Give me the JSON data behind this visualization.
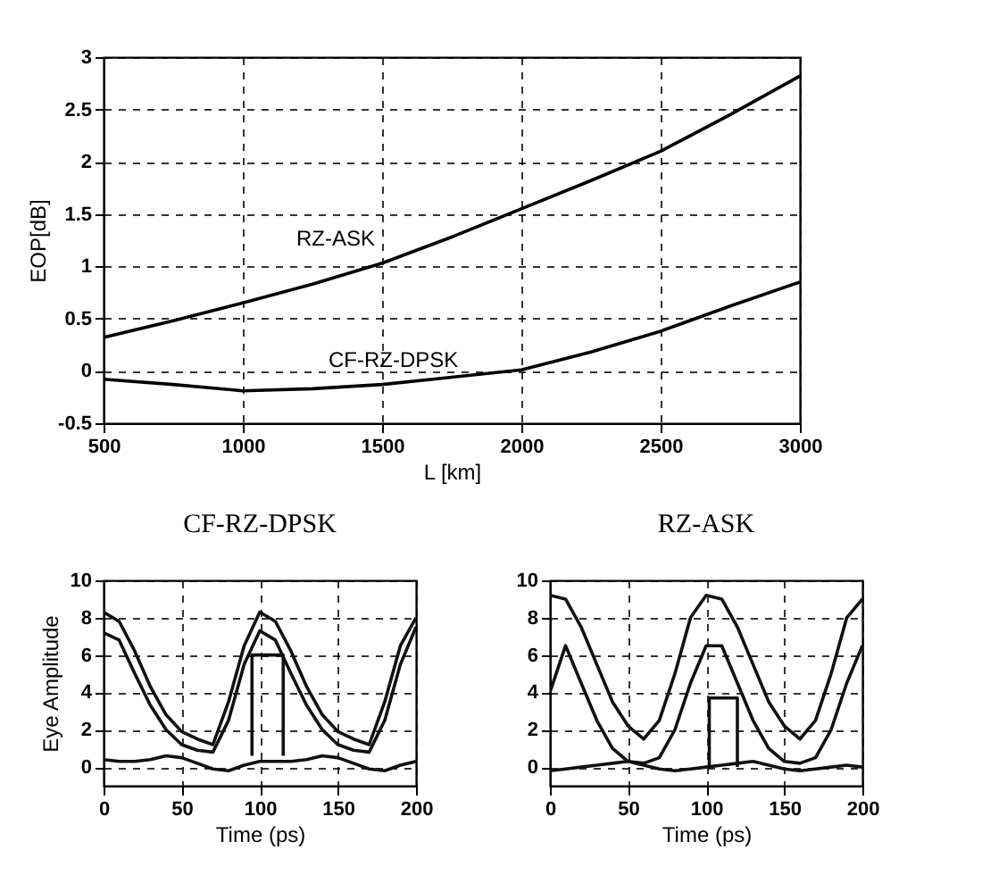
{
  "chart_data": [
    {
      "type": "line",
      "xlabel": "L [km]",
      "ylabel": "EOP[dB]",
      "x": [
        500,
        750,
        1000,
        1250,
        1500,
        1750,
        2000,
        2250,
        2500,
        2750,
        3000
      ],
      "xlim": [
        500,
        3000
      ],
      "xticks": [
        500,
        1000,
        1500,
        2000,
        2500,
        3000
      ],
      "ylim": [
        -0.5,
        3
      ],
      "yticks": [
        -0.5,
        0,
        0.5,
        1,
        1.5,
        2,
        2.5,
        3
      ],
      "grid": true,
      "series": [
        {
          "name": "RZ-ASK",
          "color": "#000000",
          "values": [
            0.32,
            0.48,
            0.65,
            0.83,
            1.03,
            1.28,
            1.55,
            1.82,
            2.1,
            2.45,
            2.82
          ]
        },
        {
          "name": "CF-RZ-DPSK",
          "color": "#000000",
          "values": [
            -0.08,
            -0.13,
            -0.19,
            -0.17,
            -0.13,
            -0.06,
            0.01,
            0.18,
            0.38,
            0.62,
            0.85
          ]
        }
      ]
    },
    {
      "type": "line",
      "title": "CF-RZ-DPSK",
      "xlabel": "Time (ps)",
      "ylabel": "Eye Amplitude",
      "x": [
        0,
        10,
        20,
        30,
        40,
        50,
        60,
        70,
        80,
        90,
        100,
        110,
        120,
        130,
        140,
        150,
        160,
        170,
        180,
        190,
        200
      ],
      "xlim": [
        0,
        200
      ],
      "xticks": [
        0,
        50,
        100,
        150,
        200
      ],
      "ylim": [
        -1,
        10
      ],
      "yticks": [
        0,
        2,
        4,
        6,
        8,
        10
      ],
      "grid": true,
      "series": [
        {
          "color": "#111111",
          "values": [
            8.3,
            7.8,
            6.2,
            4.3,
            2.8,
            1.9,
            1.5,
            1.2,
            3.5,
            6.5,
            8.3,
            7.8,
            6.2,
            4.3,
            2.8,
            1.9,
            1.5,
            1.2,
            3.5,
            6.5,
            8.0
          ]
        },
        {
          "color": "#111111",
          "values": [
            7.2,
            6.8,
            5.0,
            3.3,
            2.0,
            1.2,
            0.9,
            0.8,
            2.5,
            5.5,
            7.3,
            6.8,
            5.0,
            3.3,
            2.0,
            1.2,
            0.9,
            0.8,
            2.5,
            5.5,
            7.5
          ]
        },
        {
          "color": "#111111",
          "values": [
            0.4,
            0.3,
            0.3,
            0.4,
            0.6,
            0.5,
            0.2,
            -0.1,
            -0.2,
            0.1,
            0.3,
            0.3,
            0.3,
            0.4,
            0.6,
            0.5,
            0.2,
            -0.1,
            -0.2,
            0.1,
            0.3
          ]
        },
        {
          "color": "#111111",
          "x": [
            95,
            95,
            115,
            115
          ],
          "values": [
            0.6,
            6.0,
            6.0,
            0.6
          ]
        }
      ]
    },
    {
      "type": "line",
      "title": "RZ-ASK",
      "xlabel": "Time (ps)",
      "x": [
        0,
        10,
        20,
        30,
        40,
        50,
        60,
        70,
        80,
        90,
        100,
        110,
        120,
        130,
        140,
        150,
        160,
        170,
        180,
        190,
        200
      ],
      "xlim": [
        0,
        200
      ],
      "xticks": [
        0,
        50,
        100,
        150,
        200
      ],
      "ylim": [
        -1,
        10
      ],
      "yticks": [
        0,
        2,
        4,
        6,
        8,
        10
      ],
      "grid": true,
      "series": [
        {
          "color": "#111111",
          "values": [
            9.2,
            9.0,
            7.5,
            5.5,
            3.5,
            2.2,
            1.5,
            2.5,
            5.0,
            8.0,
            9.2,
            9.0,
            7.5,
            5.5,
            3.5,
            2.2,
            1.5,
            2.5,
            5.0,
            8.0,
            9.0
          ]
        },
        {
          "color": "#111111",
          "values": [
            4.0,
            6.5,
            4.5,
            2.5,
            1.0,
            0.3,
            0.2,
            0.5,
            2.0,
            4.5,
            6.5,
            6.5,
            4.5,
            2.5,
            1.0,
            0.3,
            0.2,
            0.5,
            2.0,
            4.5,
            6.5
          ]
        },
        {
          "color": "#111111",
          "values": [
            -0.2,
            -0.1,
            0.0,
            0.1,
            0.2,
            0.3,
            0.1,
            -0.1,
            -0.2,
            -0.1,
            0.0,
            0.1,
            0.2,
            0.3,
            0.1,
            -0.1,
            -0.2,
            -0.1,
            0.0,
            0.1,
            0.0
          ]
        },
        {
          "color": "#111111",
          "x": [
            102,
            102,
            120,
            120
          ],
          "values": [
            0.0,
            3.7,
            3.7,
            0.0
          ]
        }
      ]
    }
  ]
}
